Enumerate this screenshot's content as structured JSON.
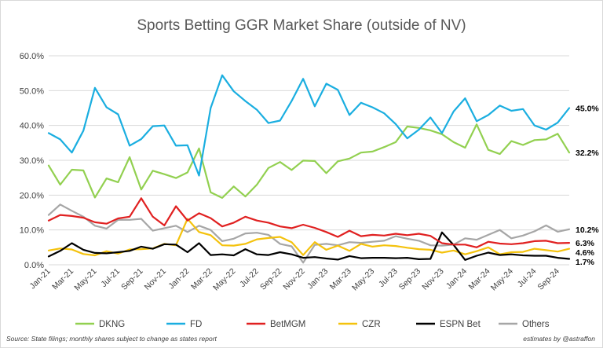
{
  "chart_data": {
    "type": "line",
    "title": "Sports Betting GGR Market Share (outside of NV)",
    "ylim": [
      0,
      60
    ],
    "yticks": [
      "0.0%",
      "10.0%",
      "20.0%",
      "30.0%",
      "40.0%",
      "50.0%",
      "60.0%"
    ],
    "grid": true,
    "legend": "bottom",
    "x": [
      "Jan-21",
      "Feb-21",
      "Mar-21",
      "Apr-21",
      "May-21",
      "Jun-21",
      "Jul-21",
      "Aug-21",
      "Sep-21",
      "Oct-21",
      "Nov-21",
      "Dec-21",
      "Jan-22",
      "Feb-22",
      "Mar-22",
      "Apr-22",
      "May-22",
      "Jun-22",
      "Jul-22",
      "Aug-22",
      "Sep-22",
      "Oct-22",
      "Nov-22",
      "Dec-22",
      "Jan-23",
      "Feb-23",
      "Mar-23",
      "Apr-23",
      "May-23",
      "Jun-23",
      "Jul-23",
      "Aug-23",
      "Sep-23",
      "Oct-23",
      "Nov-23",
      "Dec-23",
      "Jan-24",
      "Feb-24",
      "Mar-24",
      "Apr-24",
      "May-24",
      "Jun-24",
      "Jul-24",
      "Aug-24",
      "Sep-24",
      "Oct-24"
    ],
    "xtick_labels": [
      "Jan-21",
      "Mar-21",
      "May-21",
      "Jul-21",
      "Sep-21",
      "Nov-21",
      "Jan-22",
      "Mar-22",
      "May-22",
      "Jul-22",
      "Sep-22",
      "Nov-22",
      "Jan-23",
      "Mar-23",
      "May-23",
      "Jul-23",
      "Sep-23",
      "Nov-23",
      "Jan-24",
      "Mar-24",
      "May-24",
      "Jul-24",
      "Sep-24"
    ],
    "series": [
      {
        "name": "DKNG",
        "color": "#92d050",
        "end_label": "32.2%",
        "values": [
          28.5,
          23.0,
          27.3,
          27.1,
          19.3,
          24.8,
          23.7,
          30.9,
          21.6,
          27.0,
          26.0,
          24.9,
          26.5,
          33.4,
          20.8,
          19.2,
          22.5,
          19.6,
          23.0,
          27.8,
          29.5,
          27.2,
          29.9,
          29.8,
          26.3,
          29.7,
          30.5,
          32.2,
          32.5,
          33.8,
          35.2,
          39.7,
          39.3,
          38.6,
          37.5,
          35.2,
          33.6,
          40.3,
          33.0,
          31.8,
          35.5,
          34.4,
          35.8,
          36.0,
          37.6,
          32.2
        ]
      },
      {
        "name": "FD",
        "color": "#1aaee0",
        "end_label": "45.0%",
        "values": [
          37.8,
          36.0,
          32.2,
          38.5,
          50.8,
          45.2,
          43.2,
          34.2,
          36.1,
          39.8,
          40.0,
          34.2,
          34.3,
          25.6,
          45.0,
          54.4,
          49.8,
          47.0,
          44.5,
          40.7,
          41.4,
          47.0,
          53.4,
          45.5,
          52.0,
          50.2,
          43.0,
          46.5,
          45.2,
          43.5,
          40.4,
          36.3,
          38.8,
          42.3,
          37.8,
          44.0,
          47.8,
          41.2,
          43.0,
          45.7,
          44.2,
          44.7,
          40.0,
          38.8,
          40.8,
          45.0
        ]
      },
      {
        "name": "BetMGM",
        "color": "#e02020",
        "end_label": "6.3%",
        "values": [
          12.7,
          14.3,
          14.0,
          13.5,
          12.2,
          11.8,
          13.3,
          13.8,
          19.1,
          13.8,
          11.3,
          16.8,
          12.7,
          14.8,
          13.4,
          11.0,
          12.1,
          13.8,
          12.7,
          12.1,
          11.0,
          10.5,
          11.5,
          10.6,
          9.4,
          8.0,
          9.8,
          8.2,
          8.6,
          8.4,
          8.9,
          8.5,
          8.9,
          8.3,
          6.2,
          5.8,
          5.8,
          5.0,
          6.6,
          6.1,
          5.9,
          6.2,
          6.8,
          6.9,
          6.2,
          6.3
        ]
      },
      {
        "name": "CZR",
        "color": "#f4c20d",
        "end_label": "4.6%",
        "values": [
          4.1,
          4.7,
          4.4,
          3.1,
          2.7,
          3.9,
          3.2,
          4.4,
          4.5,
          4.7,
          6.0,
          5.6,
          13.2,
          9.4,
          8.5,
          5.6,
          5.5,
          6.0,
          7.3,
          7.7,
          8.0,
          6.5,
          2.8,
          6.5,
          4.3,
          5.5,
          4.0,
          6.0,
          5.2,
          5.6,
          5.4,
          4.9,
          4.5,
          4.3,
          3.5,
          4.1,
          3.0,
          3.9,
          5.0,
          3.0,
          3.6,
          3.7,
          4.6,
          4.2,
          3.8,
          4.6
        ]
      },
      {
        "name": "ESPN Bet",
        "color": "#000000",
        "end_label": "1.7%",
        "values": [
          2.4,
          4.0,
          6.2,
          4.3,
          3.4,
          3.3,
          3.6,
          4.0,
          5.2,
          4.6,
          5.9,
          5.8,
          3.6,
          6.2,
          2.8,
          3.0,
          2.7,
          4.5,
          3.0,
          2.8,
          3.6,
          3.0,
          2.0,
          2.2,
          1.8,
          1.5,
          2.5,
          1.9,
          2.0,
          2.0,
          1.9,
          2.0,
          1.6,
          1.7,
          9.3,
          5.7,
          1.4,
          2.6,
          3.5,
          2.8,
          3.0,
          2.7,
          2.6,
          2.6,
          2.0,
          1.7
        ]
      },
      {
        "name": "Others",
        "color": "#a6a6a6",
        "end_label": "10.2%",
        "values": [
          14.3,
          17.3,
          15.5,
          13.8,
          11.2,
          10.4,
          12.9,
          12.9,
          13.2,
          9.8,
          10.5,
          11.2,
          9.4,
          11.2,
          10.0,
          6.8,
          7.5,
          9.0,
          9.2,
          8.6,
          6.0,
          5.3,
          0.6,
          5.7,
          6.0,
          5.6,
          6.5,
          6.3,
          6.6,
          6.9,
          8.2,
          7.5,
          6.9,
          5.6,
          5.5,
          5.8,
          7.6,
          7.2,
          8.6,
          10.0,
          7.6,
          8.4,
          9.6,
          11.3,
          9.5,
          10.2
        ]
      }
    ],
    "legend_entries": [
      "DKNG",
      "FD",
      "BetMGM",
      "CZR",
      "ESPN Bet",
      "Others"
    ],
    "source_note": "Source: State filings; monthly shares subject to change as states report",
    "credit_note": "estimates by @astraffon"
  }
}
